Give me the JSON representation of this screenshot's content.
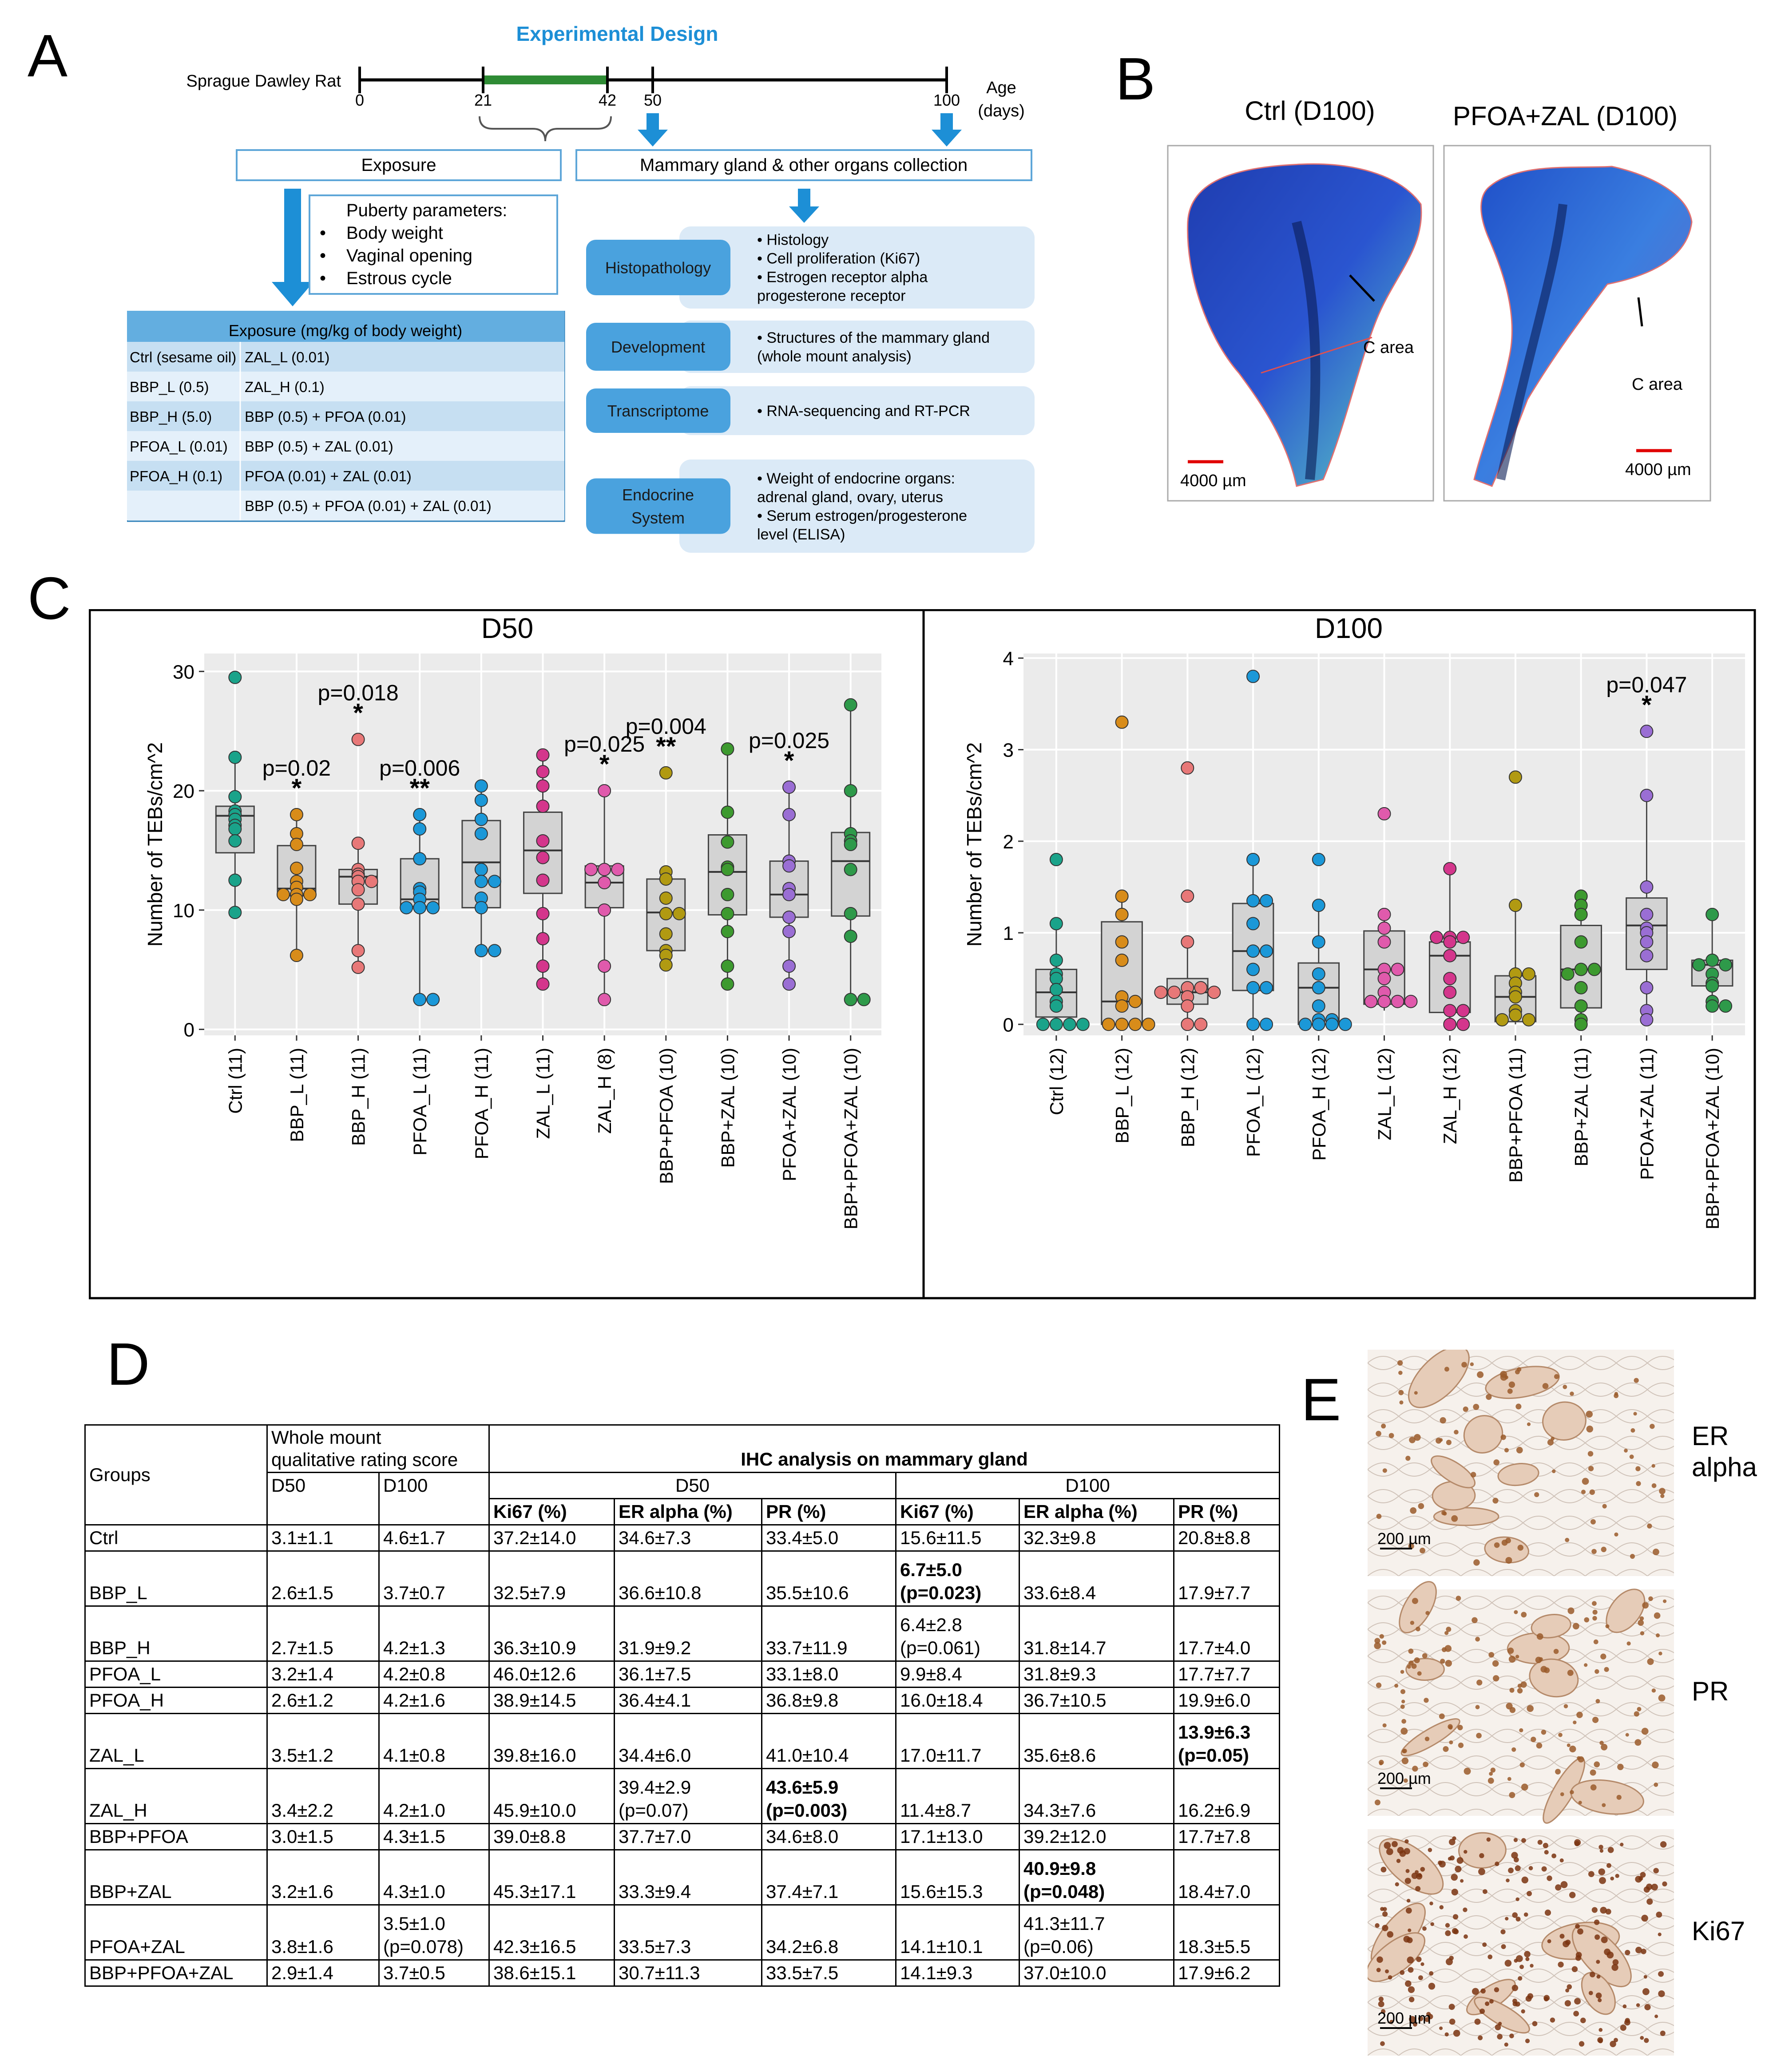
{
  "panel_labels": {
    "a": "A",
    "b": "B",
    "c": "C",
    "d": "D",
    "e": "E"
  },
  "design": {
    "title": "Experimental Design",
    "animal": "Sprague Dawley Rat",
    "ticks": [
      "0",
      "21",
      "42",
      "50",
      "100"
    ],
    "age_label": "Age",
    "age_unit": "(days)",
    "exposure_box": "Exposure",
    "collection_box": "Mammary gland & other organs collection",
    "puberty": {
      "title": "Puberty parameters:",
      "items": [
        "Body weight",
        "Vaginal opening",
        "Estrous cycle"
      ]
    },
    "exposure_table": {
      "header": "Exposure (mg/kg of body weight)",
      "rows": [
        [
          "Ctrl (sesame oil)",
          "ZAL_L (0.01)"
        ],
        [
          "BBP_L (0.5)",
          "ZAL_H (0.1)"
        ],
        [
          "BBP_H (5.0)",
          "BBP (0.5) + PFOA (0.01)"
        ],
        [
          "PFOA_L (0.01)",
          "BBP (0.5) + ZAL (0.01)"
        ],
        [
          "PFOA_H (0.1)",
          "PFOA (0.01) + ZAL (0.01)"
        ],
        [
          "",
          "BBP (0.5) + PFOA (0.01) + ZAL (0.01)"
        ]
      ]
    },
    "analyses": [
      {
        "name": "Histopathology",
        "details": [
          "• Histology",
          "• Cell proliferation (Ki67)",
          "• Estrogen receptor alpha",
          "  progesterone receptor"
        ]
      },
      {
        "name": "Development",
        "details": [
          "• Structures of the mammary gland",
          "  (whole mount analysis)"
        ]
      },
      {
        "name": "Transcriptome",
        "details": [
          "• RNA-sequencing and RT-PCR"
        ]
      },
      {
        "name": "Endocrine System",
        "name_lines": [
          "Endocrine",
          "System"
        ],
        "details": [
          "• Weight of endocrine organs:",
          "  adrenal gland, ovary, uterus",
          "• Serum estrogen/progesterone",
          "  level (ELISA)"
        ]
      }
    ],
    "colors": {
      "blue": "#1d8fd6",
      "green": "#2e8b34",
      "box_fill": "#dbeaf7",
      "box_border": "#5ea6d8"
    }
  },
  "panel_b": {
    "ctrl_title": "Ctrl (D100)",
    "treat_title": "PFOA+ZAL (D100)",
    "c_area": "C area",
    "scale": "4000 µm"
  },
  "chart_data": [
    {
      "type": "box",
      "title": "D50",
      "ylabel": "Number of TEBs/cm^2",
      "ylim": [
        -0.5,
        31.5
      ],
      "yticks": [
        0,
        10,
        20,
        30
      ],
      "categories": [
        "Ctrl (11)",
        "BBP_L (11)",
        "BBP_H (11)",
        "PFOA_L (11)",
        "PFOA_H (11)",
        "ZAL_L (11)",
        "ZAL_H (8)",
        "BBP+PFOA (10)",
        "BBP+ZAL (10)",
        "PFOA+ZAL (10)",
        "BBP+PFOA+ZAL (10)"
      ],
      "colors": [
        "#1aa38a",
        "#d88c1a",
        "#e87878",
        "#1b98d8",
        "#1b98d8",
        "#d4368c",
        "#e05aac",
        "#b19a12",
        "#3d9a2f",
        "#9a6ed4",
        "#2e9a4a"
      ],
      "boxes": [
        {
          "q1": 14.8,
          "median": 17.9,
          "q3": 18.7,
          "low": 9.8,
          "high": 22.8
        },
        {
          "q1": 11.2,
          "median": 11.8,
          "q3": 15.4,
          "low": 6.2,
          "high": 18
        },
        {
          "q1": 10.5,
          "median": 12.8,
          "q3": 13.4,
          "low": 5.2,
          "high": 15.6
        },
        {
          "q1": 10.3,
          "median": 10.9,
          "q3": 14.3,
          "low": 2.5,
          "high": 18
        },
        {
          "q1": 10.2,
          "median": 14,
          "q3": 17.5,
          "low": 6.6,
          "high": 20.4
        },
        {
          "q1": 11.4,
          "median": 15,
          "q3": 18.2,
          "low": 3.8,
          "high": 23
        },
        {
          "q1": 10.2,
          "median": 12.3,
          "q3": 13.7,
          "low": 2.5,
          "high": 20
        },
        {
          "q1": 6.6,
          "median": 9.8,
          "q3": 12.6,
          "low": 5.4,
          "high": 13.2
        },
        {
          "q1": 9.6,
          "median": 13.2,
          "q3": 16.3,
          "low": 3.8,
          "high": 23.5
        },
        {
          "q1": 9.4,
          "median": 11.3,
          "q3": 14.1,
          "low": 3.8,
          "high": 20.3
        },
        {
          "q1": 9.5,
          "median": 14.1,
          "q3": 16.5,
          "low": 2.5,
          "high": 27.2
        }
      ],
      "points": [
        [
          29.5,
          22.8,
          19.5,
          18.3,
          18,
          17.6,
          17.1,
          16.8,
          15.8,
          12.5,
          9.8
        ],
        [
          18,
          16.4,
          15.5,
          13.5,
          12.4,
          11.9,
          11.3,
          11.3,
          11.3,
          10.9,
          6.2
        ],
        [
          24.3,
          15.6,
          13.4,
          13,
          12.8,
          12.4,
          12.4,
          11.7,
          10.5,
          6.6,
          5.2
        ],
        [
          18,
          16.8,
          14.3,
          11.8,
          11.5,
          10.9,
          10.2,
          10.2,
          10.2,
          2.5,
          2.5
        ],
        [
          20.4,
          19.2,
          17.6,
          16.4,
          13.4,
          12.4,
          12.4,
          11,
          10.2,
          6.6,
          6.6
        ],
        [
          23,
          21.6,
          20.4,
          18.7,
          15.8,
          14.4,
          12.5,
          9.7,
          7.6,
          5.3,
          3.8
        ],
        [
          20,
          13.4,
          13.4,
          13.4,
          12.3,
          10,
          5.3,
          2.5
        ],
        [
          21.5,
          13.2,
          12.6,
          11,
          9.7,
          9.7,
          8,
          6.6,
          6.2,
          5.4
        ],
        [
          23.5,
          18.2,
          15.7,
          13.6,
          13.4,
          11.3,
          9.7,
          8.2,
          5.3,
          3.8
        ],
        [
          20.3,
          18,
          14.1,
          13.7,
          11.8,
          11.3,
          9.4,
          8.2,
          5.3,
          3.8
        ],
        [
          27.2,
          20,
          16.4,
          15.8,
          15.5,
          13.4,
          9.7,
          7.8,
          2.5,
          2.5
        ]
      ],
      "annotations": [
        {
          "category": "BBP_L (11)",
          "p": "p=0.02",
          "stars": "*"
        },
        {
          "category": "BBP_H (11)",
          "p": "p=0.018",
          "stars": "*"
        },
        {
          "category": "PFOA_L (11)",
          "p": "p=0.006",
          "stars": "**"
        },
        {
          "category": "ZAL_H (8)",
          "p": "p=0.025",
          "stars": "*"
        },
        {
          "category": "BBP+PFOA (10)",
          "p": "p=0.004",
          "stars": "**"
        },
        {
          "category": "PFOA+ZAL (10)",
          "p": "p=0.025",
          "stars": "*"
        }
      ]
    },
    {
      "type": "box",
      "title": "D100",
      "ylabel": "Number of TEBs/cm^2",
      "ylim": [
        -0.12,
        4.05
      ],
      "yticks": [
        0,
        1,
        2,
        3,
        4
      ],
      "categories": [
        "Ctrl (12)",
        "BBP_L (12)",
        "BBP_H (12)",
        "PFOA_L (12)",
        "PFOA_H (12)",
        "ZAL_L (12)",
        "ZAL_H (12)",
        "BBP+PFOA (11)",
        "BBP+ZAL (11)",
        "PFOA+ZAL (11)",
        "BBP+PFOA+ZAL (10)"
      ],
      "colors": [
        "#1aa38a",
        "#d88c1a",
        "#e87878",
        "#1b98d8",
        "#1b98d8",
        "#e05aac",
        "#d4368c",
        "#b19a12",
        "#3d9a2f",
        "#9a6ed4",
        "#2e9a4a"
      ],
      "boxes": [
        {
          "q1": 0.08,
          "median": 0.35,
          "q3": 0.6,
          "low": 0,
          "high": 1.1
        },
        {
          "q1": 0,
          "median": 0.25,
          "q3": 1.12,
          "low": 0,
          "high": 1.4
        },
        {
          "q1": 0.22,
          "median": 0.35,
          "q3": 0.5,
          "low": 0,
          "high": 0.9
        },
        {
          "q1": 0.37,
          "median": 0.8,
          "q3": 1.32,
          "low": 0,
          "high": 1.8
        },
        {
          "q1": 0,
          "median": 0.4,
          "q3": 0.67,
          "low": 0,
          "high": 1.3
        },
        {
          "q1": 0.22,
          "median": 0.6,
          "q3": 1.02,
          "low": 0.15,
          "high": 1.2
        },
        {
          "q1": 0.13,
          "median": 0.75,
          "q3": 0.9,
          "low": 0,
          "high": 1.7
        },
        {
          "q1": 0.03,
          "median": 0.3,
          "q3": 0.53,
          "low": 0,
          "high": 1.3
        },
        {
          "q1": 0.18,
          "median": 0.6,
          "q3": 1.08,
          "low": 0,
          "high": 1.4
        },
        {
          "q1": 0.6,
          "median": 1.08,
          "q3": 1.38,
          "low": 0.05,
          "high": 2.5
        },
        {
          "q1": 0.42,
          "median": 0.65,
          "q3": 0.7,
          "low": 0.2,
          "high": 1.2
        }
      ],
      "points": [
        [
          1.8,
          1.1,
          0.7,
          0.55,
          0.5,
          0.38,
          0.25,
          0.2,
          0,
          0,
          0,
          0
        ],
        [
          3.3,
          1.4,
          1.2,
          0.9,
          0.7,
          0.3,
          0.25,
          0.2,
          0,
          0,
          0,
          0
        ],
        [
          2.8,
          1.4,
          0.9,
          0.4,
          0.4,
          0.35,
          0.35,
          0.35,
          0.3,
          0.2,
          0,
          0
        ],
        [
          3.8,
          1.8,
          1.35,
          1.35,
          1.1,
          0.8,
          0.8,
          0.6,
          0.4,
          0.4,
          0,
          0
        ],
        [
          1.8,
          1.3,
          0.9,
          0.55,
          0.4,
          0.2,
          0.05,
          0.05,
          0,
          0,
          0,
          0
        ],
        [
          2.3,
          1.2,
          1.05,
          0.9,
          0.6,
          0.6,
          0.5,
          0.35,
          0.25,
          0.25,
          0.25,
          0.25
        ],
        [
          1.7,
          0.95,
          0.95,
          0.95,
          0.9,
          0.75,
          0.5,
          0.35,
          0.15,
          0.15,
          0,
          0
        ],
        [
          2.7,
          1.3,
          0.55,
          0.55,
          0.45,
          0.35,
          0.3,
          0.15,
          0.1,
          0.05,
          0.05
        ],
        [
          1.4,
          1.3,
          1.2,
          0.9,
          0.6,
          0.6,
          0.55,
          0.4,
          0.2,
          0.05,
          0
        ],
        [
          3.2,
          2.5,
          1.5,
          1.2,
          1.05,
          1,
          0.9,
          0.75,
          0.4,
          0.15,
          0.05
        ],
        [
          1.2,
          0.7,
          0.65,
          0.65,
          0.55,
          0.45,
          0.42,
          0.25,
          0.2,
          0.2
        ]
      ],
      "annotations": [
        {
          "category": "PFOA+ZAL (11)",
          "p": "p=0.047",
          "stars": "*"
        }
      ]
    }
  ],
  "table_d": {
    "groups_header": "Groups",
    "wm_header": [
      "Whole mount",
      "qualitative rating score"
    ],
    "ihc_header": "IHC analysis on mammary gland",
    "d50": "D50",
    "d100": "D100",
    "sub_headers": [
      "Ki67 (%)",
      "ER alpha (%)",
      "PR (%)"
    ],
    "rows": [
      {
        "group": "Ctrl",
        "tall": false,
        "cells": [
          "3.1±1.1",
          "4.6±1.7",
          "37.2±14.0",
          "34.6±7.3",
          "33.4±5.0",
          "15.6±11.5",
          "32.3±9.8",
          "20.8±8.8"
        ]
      },
      {
        "group": "BBP_L",
        "tall": true,
        "cells": [
          "2.6±1.5",
          "3.7±0.7",
          "32.5±7.9",
          "36.6±10.8",
          "35.5±10.6",
          "6.7±5.0\n(p=0.023)",
          "33.6±8.4",
          "17.9±7.7"
        ],
        "bold": [
          5
        ]
      },
      {
        "group": "BBP_H",
        "tall": true,
        "cells": [
          "2.7±1.5",
          "4.2±1.3",
          "36.3±10.9",
          "31.9±9.2",
          "33.7±11.9",
          "6.4±2.8\n(p=0.061)",
          "31.8±14.7",
          "17.7±4.0"
        ]
      },
      {
        "group": "PFOA_L",
        "tall": false,
        "cells": [
          "3.2±1.4",
          "4.2±0.8",
          "46.0±12.6",
          "36.1±7.5",
          "33.1±8.0",
          "9.9±8.4",
          "31.8±9.3",
          "17.7±7.7"
        ]
      },
      {
        "group": "PFOA_H",
        "tall": false,
        "cells": [
          "2.6±1.2",
          "4.2±1.6",
          "38.9±14.5",
          "36.4±4.1",
          "36.8±9.8",
          "16.0±18.4",
          "36.7±10.5",
          "19.9±6.0"
        ]
      },
      {
        "group": "ZAL_L",
        "tall": true,
        "cells": [
          "3.5±1.2",
          "4.1±0.8",
          "39.8±16.0",
          "34.4±6.0",
          "41.0±10.4",
          "17.0±11.7",
          "35.6±8.6",
          "13.9±6.3\n(p=0.05)"
        ],
        "bold": [
          7
        ]
      },
      {
        "group": "ZAL_H",
        "tall": true,
        "cells": [
          "3.4±2.2",
          "4.2±1.0",
          "45.9±10.0",
          "39.4±2.9\n(p=0.07)",
          "43.6±5.9\n(p=0.003)",
          "11.4±8.7",
          "34.3±7.6",
          "16.2±6.9"
        ],
        "bold": [
          4
        ]
      },
      {
        "group": "BBP+PFOA",
        "tall": false,
        "cells": [
          "3.0±1.5",
          "4.3±1.5",
          "39.0±8.8",
          "37.7±7.0",
          "34.6±8.0",
          "17.1±13.0",
          "39.2±12.0",
          "17.7±7.8"
        ]
      },
      {
        "group": "BBP+ZAL",
        "tall": true,
        "cells": [
          "3.2±1.6",
          "4.3±1.0",
          "45.3±17.1",
          "33.3±9.4",
          "37.4±7.1",
          "15.6±15.3",
          "40.9±9.8\n(p=0.048)",
          "18.4±7.0"
        ],
        "bold": [
          6
        ]
      },
      {
        "group": "PFOA+ZAL",
        "tall": true,
        "cells": [
          "3.8±1.6",
          "3.5±1.0\n(p=0.078)",
          "42.3±16.5",
          "33.5±7.3",
          "34.2±6.8",
          "14.1±10.1",
          "41.3±11.7\n(p=0.06)",
          "18.3±5.5"
        ]
      },
      {
        "group": "BBP+PFOA+ZAL",
        "tall": false,
        "cells": [
          "2.9±1.4",
          "3.7±0.5",
          "38.6±15.1",
          "30.7±11.3",
          "33.5±7.5",
          "14.1±9.3",
          "37.0±10.0",
          "17.9±6.2"
        ]
      }
    ]
  },
  "panel_e": {
    "labels": [
      "ER\nalpha",
      "PR",
      "Ki67"
    ],
    "scale": "200 µm"
  }
}
